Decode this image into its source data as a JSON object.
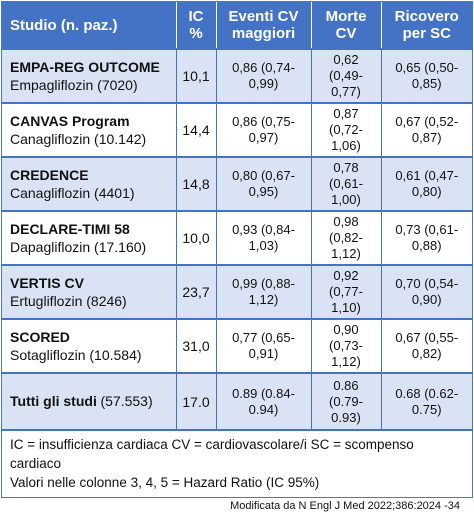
{
  "header": {
    "study": "Studio (n. paz.)",
    "ic": "IC %",
    "cv": "Eventi CV maggiori",
    "death": "Morte CV",
    "hosp": "Ricovero per SC"
  },
  "rows": [
    {
      "name": "EMPA-REG OUTCOME",
      "drug": "Empagliflozin (7020)",
      "ic": "10,1",
      "cv": "0,86 (0,74-0,99)",
      "death": "0,62 (0,49-0,77)",
      "hosp": "0,65 (0,50-0,85)"
    },
    {
      "name": "CANVAS Program",
      "drug": "Canagliflozin (10.142)",
      "ic": "14,4",
      "cv": "0,86 (0,75-0,97)",
      "death": "0,87 (0,72-1,06)",
      "hosp": "0,67 (0,52-0,87)"
    },
    {
      "name": "CREDENCE",
      "drug": "Canagliflozin (4401)",
      "ic": "14,8",
      "cv": "0,80 (0,67-0,95)",
      "death": "0,78 (0,61-1,00)",
      "hosp": "0,61 (0,47-0,80)"
    },
    {
      "name": "DECLARE-TIMI 58",
      "drug": "Dapagliflozin (17.160)",
      "ic": "10,0",
      "cv": "0,93 (0,84-1,03)",
      "death": "0,98 (0,82-1,12)",
      "hosp": "0,73 (0,61-0,88)"
    },
    {
      "name": "VERTIS CV",
      "drug": "Ertugliflozin (8246)",
      "ic": "23,7",
      "cv": "0,99 (0,88-1,12)",
      "death": "0,92 (0,77-1,10)",
      "hosp": "0,70 (0,54-0,90)"
    },
    {
      "name": "SCORED",
      "drug": "Sotagliflozin (10.584)",
      "ic": "31,0",
      "cv": "0,77 (0,65-0,91)",
      "death": "0,90 (0,73-1,12)",
      "hosp": "0,67 (0,55-0,82)"
    }
  ],
  "total": {
    "label": "Tutti gli studi",
    "count": "(57.553)",
    "ic": "17.0",
    "cv": "0.89 (0.84-0.94)",
    "death": "0.86 (0.79-0.93)",
    "hosp": "0.68 (0.62-0.75)"
  },
  "notes": {
    "line1": "IC = insufficienza cardiaca CV = cardiovascolare/i SC = scompenso cardiaco",
    "line2": "Valori nelle colonne 3, 4, 5 = Hazard Ratio (IC 95%)"
  },
  "source": "Modificata da N Engl J Med 2022;386:2024 -34",
  "colors": {
    "header_bg": "#4472c4",
    "shaded_row": "#dae3f3",
    "border": "#4472c4"
  }
}
